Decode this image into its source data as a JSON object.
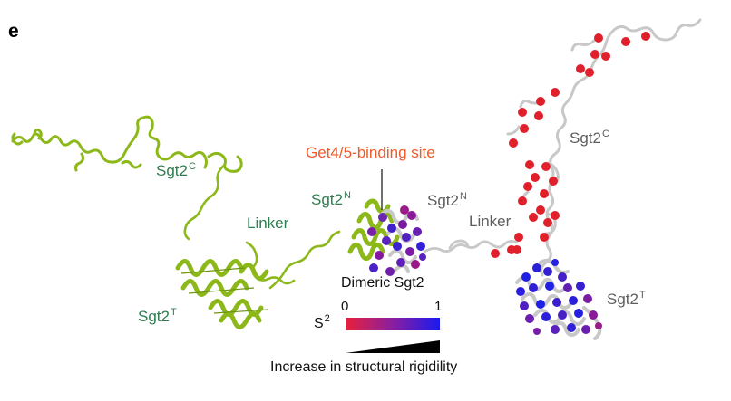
{
  "panel_letter": "e",
  "labels": {
    "left_c": {
      "base": "Sgt2",
      "sup": "C"
    },
    "left_linker": "Linker",
    "left_n": {
      "base": "Sgt2",
      "sup": "N"
    },
    "left_t": {
      "base": "Sgt2",
      "sup": "T"
    },
    "binding_site": "Get4/5-binding site",
    "right_n": {
      "base": "Sgt2",
      "sup": "N"
    },
    "right_linker": "Linker",
    "right_c": {
      "base": "Sgt2",
      "sup": "C"
    },
    "right_t": {
      "base": "Sgt2",
      "sup": "T"
    }
  },
  "legend": {
    "title": "Dimeric Sgt2",
    "s2_base": "S",
    "s2_sup": "2",
    "tick_low": "0",
    "tick_high": "1",
    "gradient_colors": [
      "#e8203a",
      "#8a1fa0",
      "#1a1aee"
    ],
    "caption": "Increase in structural rigidility"
  },
  "colors": {
    "monomer_cartoon": "#8cb81a",
    "label_green": "#2e7d4f",
    "label_gray": "#5e5e5e",
    "label_orange": "#f05a28",
    "dimer_cartoon": "#c8c8c8",
    "flexible_sphere": "#e0202a",
    "rigid_sphere": "#2a20d8"
  }
}
